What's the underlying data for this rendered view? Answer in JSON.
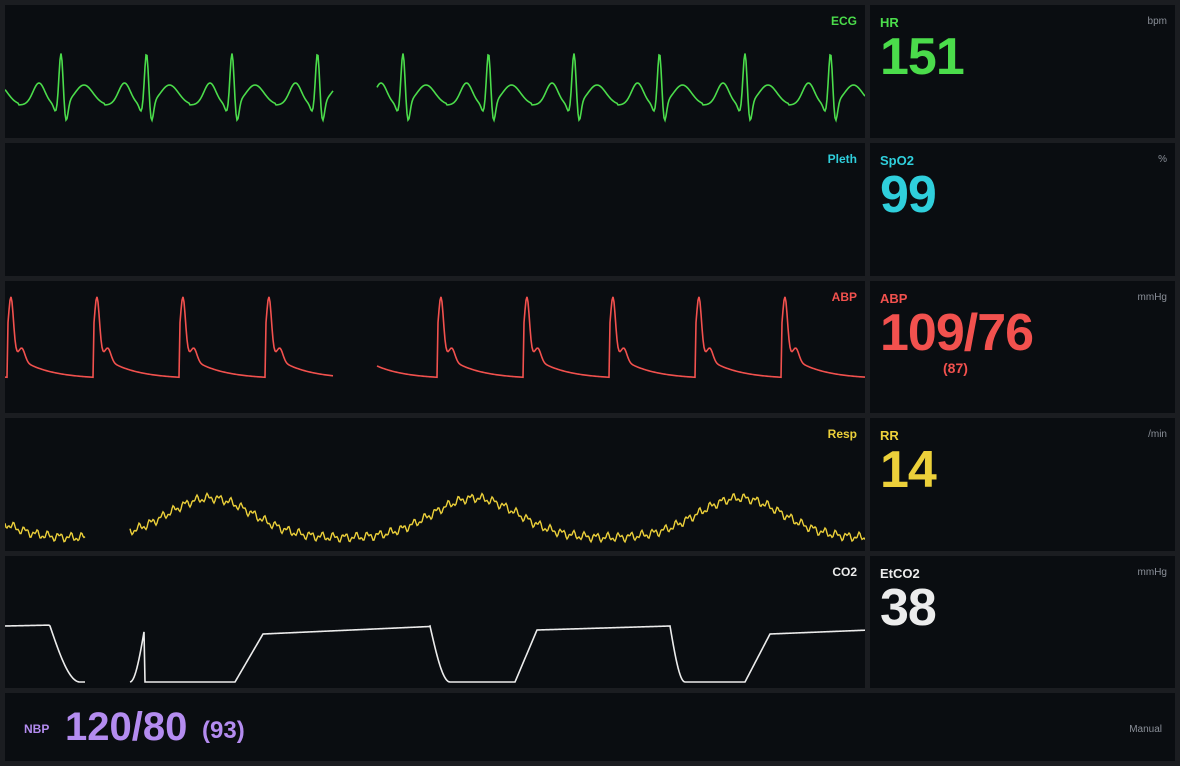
{
  "colors": {
    "ecg": "#4bdc4b",
    "pleth": "#2fcfdc",
    "abp": "#f2514e",
    "resp": "#ecd03a",
    "co2": "#ececec",
    "nbp": "#b48cf0"
  },
  "waveforms": {
    "ecg": {
      "label": "ECG"
    },
    "pleth": {
      "label": "Pleth"
    },
    "abp": {
      "label": "ABP"
    },
    "resp": {
      "label": "Resp"
    },
    "co2": {
      "label": "CO2"
    }
  },
  "numerics": {
    "hr": {
      "label": "HR",
      "unit": "bpm",
      "value": "151"
    },
    "spo2": {
      "label": "SpO2",
      "unit": "%",
      "value": "99"
    },
    "abp": {
      "label": "ABP",
      "unit": "mmHg",
      "value": "109/76",
      "mean": "(87)"
    },
    "rr": {
      "label": "RR",
      "unit": "/min",
      "value": "14"
    },
    "etco2": {
      "label": "EtCO2",
      "unit": "mmHg",
      "value": "38"
    }
  },
  "nbp": {
    "label": "NBP",
    "value": "120/80",
    "mean": "(93)",
    "mode": "Manual"
  }
}
